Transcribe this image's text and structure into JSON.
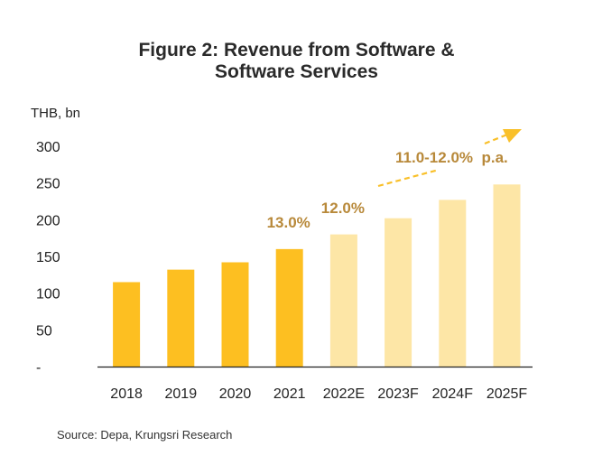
{
  "chart_data": {
    "type": "bar",
    "title_lines": [
      "Figure 2: Revenue from Software &",
      "Software Services"
    ],
    "ylabel": "THB, bn",
    "ylim": [
      0,
      300
    ],
    "yticks": [
      {
        "value": 300,
        "label": "300"
      },
      {
        "value": 250,
        "label": "250"
      },
      {
        "value": 200,
        "label": "200"
      },
      {
        "value": 150,
        "label": "150"
      },
      {
        "value": 100,
        "label": "100"
      },
      {
        "value": 50,
        "label": "50"
      },
      {
        "value": 0,
        "label": "-"
      }
    ],
    "categories": [
      "2018",
      "2019",
      "2020",
      "2021",
      "2022E",
      "2023F",
      "2024F",
      "2025F"
    ],
    "values": [
      115,
      132,
      142,
      160,
      180,
      202,
      227,
      248
    ],
    "bar_types": [
      "actual",
      "actual",
      "actual",
      "actual",
      "forecast",
      "forecast",
      "forecast",
      "forecast"
    ],
    "colors": {
      "actual": "#fdbf21",
      "forecast": "#fde6a6",
      "annotation": "#b8893a",
      "arrow": "#f9c02a",
      "axis": "#222222"
    },
    "annotations": [
      {
        "text": "13.0%",
        "category": "2021"
      },
      {
        "text": "12.0%",
        "category": "2022E"
      },
      {
        "text": "11.0-12.0%  p.a.",
        "note": "growth arrow over 2023F-2025F"
      }
    ],
    "grid": false,
    "legend": "none"
  },
  "source": "Source: Depa, Krungsri Research"
}
